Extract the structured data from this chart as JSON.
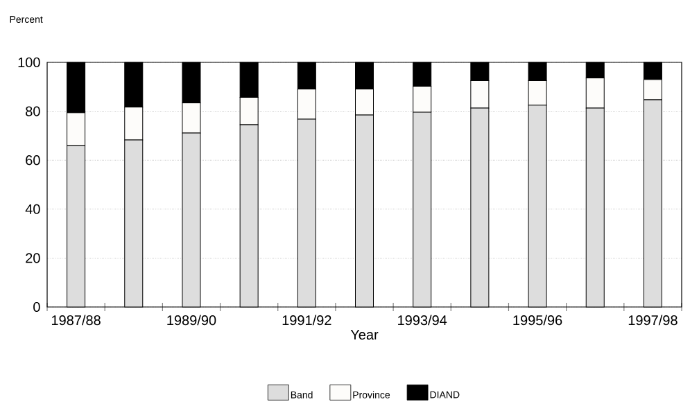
{
  "chart_data": {
    "type": "bar",
    "stacked": true,
    "ylabel": "Percent",
    "xlabel": "Year",
    "categories": [
      "1987/88",
      null,
      "1989/90",
      null,
      "1991/92",
      null,
      "1993/94",
      null,
      "1995/96",
      null,
      "1997/98"
    ],
    "series": [
      {
        "name": "Band",
        "color": "#dddddd",
        "values": [
          66.0,
          68.3,
          71.1,
          74.5,
          76.8,
          78.5,
          79.6,
          81.3,
          82.5,
          81.3,
          84.7
        ]
      },
      {
        "name": "Province",
        "color": "#fdfcfa",
        "values": [
          13.4,
          13.4,
          12.3,
          11.2,
          12.3,
          10.6,
          10.6,
          11.2,
          10.0,
          12.3,
          8.3
        ]
      },
      {
        "name": "DIAND",
        "color": "#000000",
        "values": [
          20.6,
          18.3,
          16.6,
          14.3,
          10.9,
          10.9,
          9.8,
          7.5,
          7.5,
          6.4,
          7.0
        ]
      }
    ],
    "ylim": [
      0,
      100
    ],
    "yticks": [
      0,
      20,
      40,
      60,
      80,
      100
    ],
    "grid": "y",
    "legend": "bottom"
  }
}
